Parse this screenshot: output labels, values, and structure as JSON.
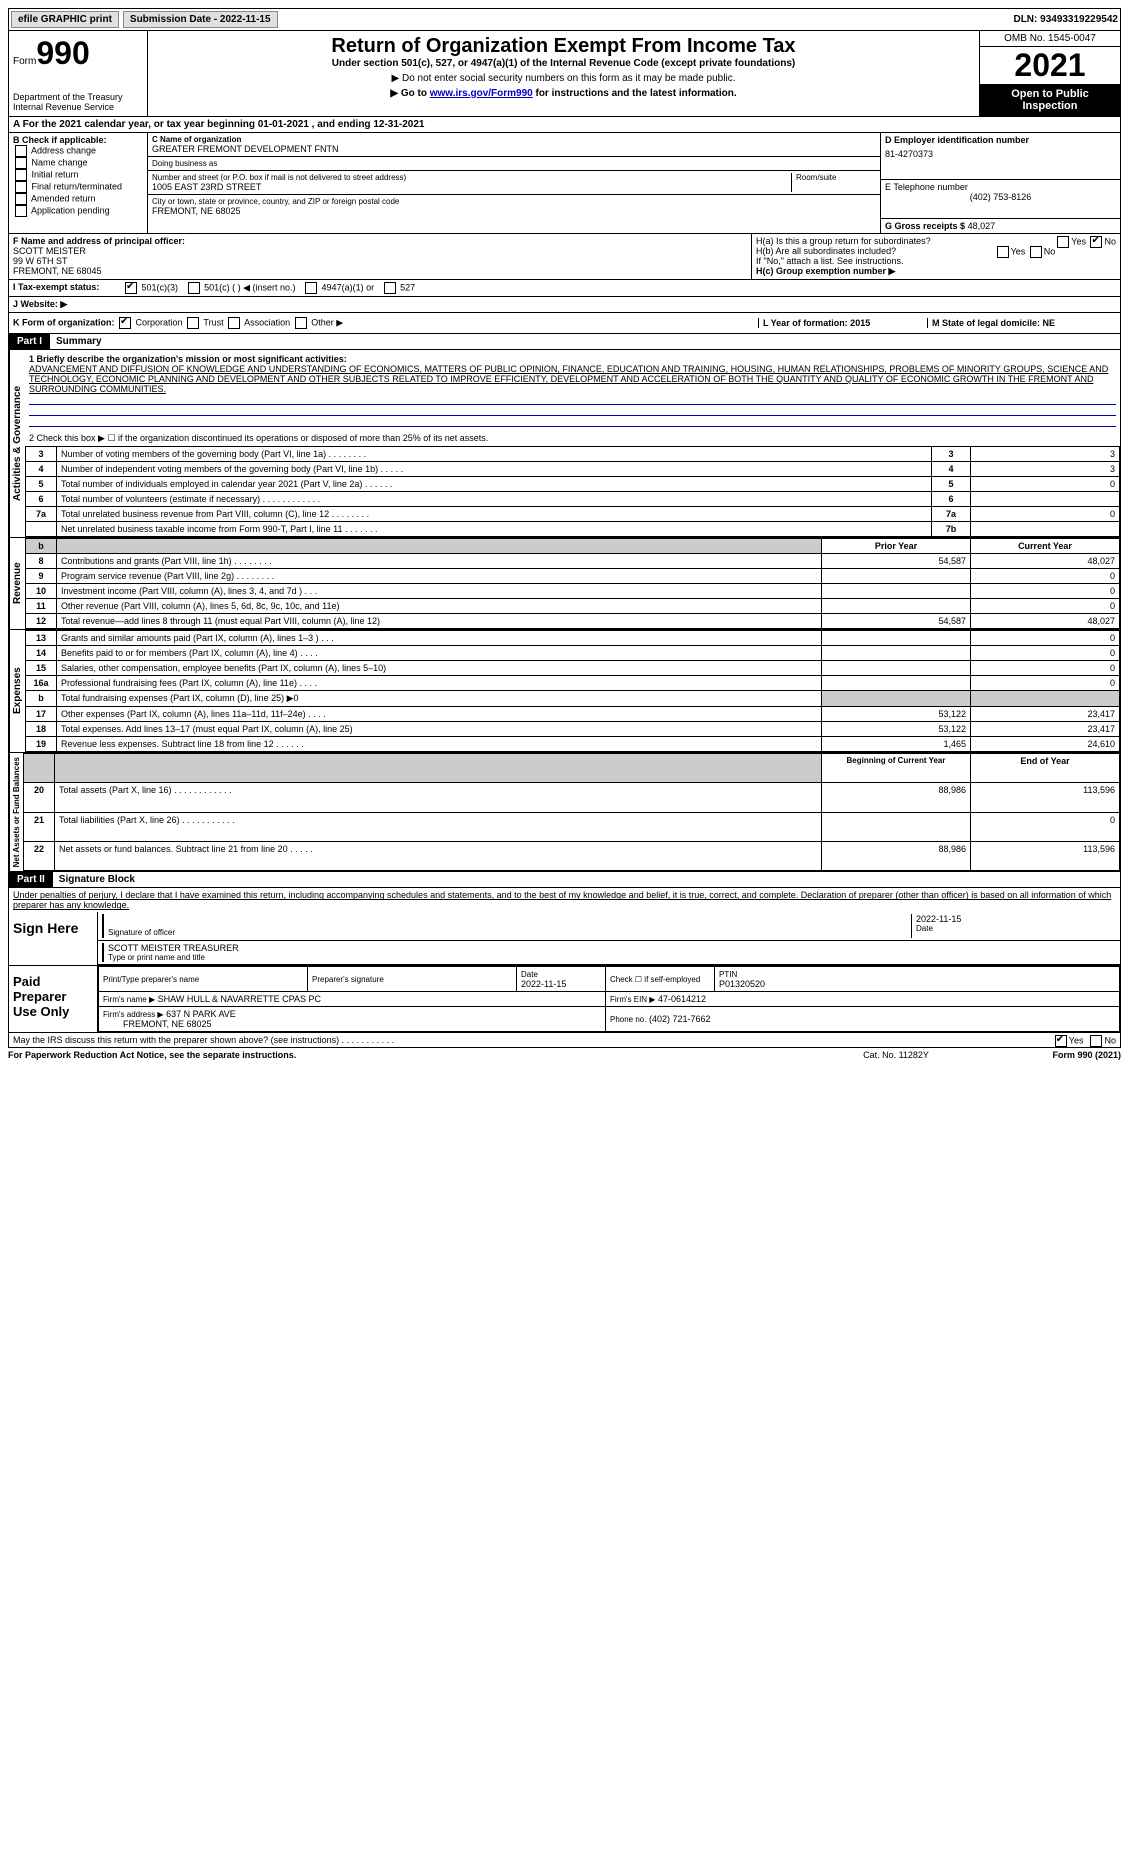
{
  "topbar": {
    "efile": "efile GRAPHIC print",
    "submission_label": "Submission Date - 2022-11-15",
    "dln": "DLN: 93493319229542"
  },
  "header": {
    "form_word": "Form",
    "form_num": "990",
    "dept": "Department of the Treasury",
    "irs": "Internal Revenue Service",
    "title": "Return of Organization Exempt From Income Tax",
    "sub1": "Under section 501(c), 527, or 4947(a)(1) of the Internal Revenue Code (except private foundations)",
    "sub2": "▶ Do not enter social security numbers on this form as it may be made public.",
    "sub3_pre": "▶ Go to ",
    "sub3_link": "www.irs.gov/Form990",
    "sub3_post": " for instructions and the latest information.",
    "omb": "OMB No. 1545-0047",
    "year": "2021",
    "open": "Open to Public Inspection"
  },
  "rowA": "A For the 2021 calendar year, or tax year beginning 01-01-2021     , and ending 12-31-2021",
  "B": {
    "label": "B Check if applicable:",
    "items": [
      "Address change",
      "Name change",
      "Initial return",
      "Final return/terminated",
      "Amended return",
      "Application pending"
    ]
  },
  "C": {
    "name_label": "C Name of organization",
    "name": "GREATER FREMONT DEVELOPMENT FNTN",
    "dba_label": "Doing business as",
    "dba": "",
    "street_label": "Number and street (or P.O. box if mail is not delivered to street address)",
    "street": "1005 EAST 23RD STREET",
    "room_label": "Room/suite",
    "city_label": "City or town, state or province, country, and ZIP or foreign postal code",
    "city": "FREMONT, NE  68025"
  },
  "D": {
    "label": "D Employer identification number",
    "value": "81-4270373"
  },
  "E": {
    "label": "E Telephone number",
    "value": "(402) 753-8126"
  },
  "G": {
    "label": "G Gross receipts $",
    "value": "48,027"
  },
  "F": {
    "label": "F  Name and address of principal officer:",
    "name": "SCOTT MEISTER",
    "addr1": "99 W 6TH ST",
    "addr2": "FREMONT, NE  68045"
  },
  "H": {
    "a": "H(a)  Is this a group return for subordinates?",
    "b": "H(b)  Are all subordinates included?",
    "note": "If \"No,\" attach a list. See instructions.",
    "c": "H(c)  Group exemption number ▶",
    "yes": "Yes",
    "no": "No"
  },
  "I": {
    "label": "I   Tax-exempt status:",
    "opts": [
      "501(c)(3)",
      "501(c) (  ) ◀ (insert no.)",
      "4947(a)(1) or",
      "527"
    ]
  },
  "J": {
    "label": "J   Website: ▶",
    "value": ""
  },
  "K": {
    "label": "K Form of organization:",
    "opts": [
      "Corporation",
      "Trust",
      "Association",
      "Other ▶"
    ]
  },
  "L": {
    "label": "L Year of formation: 2015"
  },
  "M": {
    "label": "M State of legal domicile: NE"
  },
  "partI": {
    "hdr": "Part I",
    "title": "Summary"
  },
  "summary": {
    "l1_label": "1  Briefly describe the organization's mission or most significant activities:",
    "mission": "ADVANCEMENT AND DIFFUSION OF KNOWLEDGE AND UNDERSTANDING OF ECONOMICS, MATTERS OF PUBLIC OPINION, FINANCE, EDUCATION AND TRAINING, HOUSING, HUMAN RELATIONSHIPS, PROBLEMS OF MINORITY GROUPS, SCIENCE AND TECHNOLOGY, ECONOMIC PLANNING AND DEVELOPMENT AND OTHER SUBJECTS RELATED TO IMPROVE EFFICIENTY, DEVELOPMENT AND ACCELERATION OF BOTH THE QUANTITY AND QUALITY OF ECONOMIC GROWTH IN THE FREMONT AND SURROUNDING COMMUNITIES.",
    "l2": "2   Check this box ▶ ☐ if the organization discontinued its operations or disposed of more than 25% of its net assets.",
    "rows_ag": [
      {
        "n": "3",
        "d": "Number of voting members of the governing body (Part VI, line 1a)   .    .    .    .    .    .    .    .",
        "b": "3",
        "v": "3"
      },
      {
        "n": "4",
        "d": "Number of independent voting members of the governing body (Part VI, line 1b)    .    .    .    .    .",
        "b": "4",
        "v": "3"
      },
      {
        "n": "5",
        "d": "Total number of individuals employed in calendar year 2021 (Part V, line 2a)   .    .    .    .    .    .",
        "b": "5",
        "v": "0"
      },
      {
        "n": "6",
        "d": "Total number of volunteers (estimate if necessary)   .    .    .    .    .    .    .    .    .    .    .    .",
        "b": "6",
        "v": ""
      },
      {
        "n": "7a",
        "d": "Total unrelated business revenue from Part VIII, column (C), line 12    .    .    .    .    .    .    .    .",
        "b": "7a",
        "v": "0"
      },
      {
        "n": "",
        "d": "Net unrelated business taxable income from Form 990-T, Part I, line 11   .    .    .    .    .    .    .",
        "b": "7b",
        "v": ""
      }
    ],
    "col_hdr_prior": "Prior Year",
    "col_hdr_curr": "Current Year",
    "rows_rev": [
      {
        "n": "8",
        "d": "Contributions and grants (Part VIII, line 1h)   .    .    .    .    .    .    .    .",
        "p": "54,587",
        "c": "48,027"
      },
      {
        "n": "9",
        "d": "Program service revenue (Part VIII, line 2g)    .    .    .    .    .    .    .    .",
        "p": "",
        "c": "0"
      },
      {
        "n": "10",
        "d": "Investment income (Part VIII, column (A), lines 3, 4, and 7d )    .    .    .",
        "p": "",
        "c": "0"
      },
      {
        "n": "11",
        "d": "Other revenue (Part VIII, column (A), lines 5, 6d, 8c, 9c, 10c, and 11e)",
        "p": "",
        "c": "0"
      },
      {
        "n": "12",
        "d": "Total revenue—add lines 8 through 11 (must equal Part VIII, column (A), line 12)",
        "p": "54,587",
        "c": "48,027"
      }
    ],
    "rows_exp": [
      {
        "n": "13",
        "d": "Grants and similar amounts paid (Part IX, column (A), lines 1–3 )   .    .    .",
        "p": "",
        "c": "0"
      },
      {
        "n": "14",
        "d": "Benefits paid to or for members (Part IX, column (A), line 4)   .    .    .    .",
        "p": "",
        "c": "0"
      },
      {
        "n": "15",
        "d": "Salaries, other compensation, employee benefits (Part IX, column (A), lines 5–10)",
        "p": "",
        "c": "0"
      },
      {
        "n": "16a",
        "d": "Professional fundraising fees (Part IX, column (A), line 11e)    .    .    .    .",
        "p": "",
        "c": "0"
      },
      {
        "n": "b",
        "d": "Total fundraising expenses (Part IX, column (D), line 25) ▶0",
        "p": "shade",
        "c": "shade"
      },
      {
        "n": "17",
        "d": "Other expenses (Part IX, column (A), lines 11a–11d, 11f–24e)   .    .    .    .",
        "p": "53,122",
        "c": "23,417"
      },
      {
        "n": "18",
        "d": "Total expenses. Add lines 13–17 (must equal Part IX, column (A), line 25)",
        "p": "53,122",
        "c": "23,417"
      },
      {
        "n": "19",
        "d": "Revenue less expenses. Subtract line 18 from line 12   .    .    .    .    .    .",
        "p": "1,465",
        "c": "24,610"
      }
    ],
    "col_hdr_beg": "Beginning of Current Year",
    "col_hdr_end": "End of Year",
    "rows_na": [
      {
        "n": "20",
        "d": "Total assets (Part X, line 16)   .    .    .    .    .    .    .    .    .    .    .    .",
        "p": "88,986",
        "c": "113,596"
      },
      {
        "n": "21",
        "d": "Total liabilities (Part X, line 26)    .    .    .    .    .    .    .    .    .    .    .",
        "p": "",
        "c": "0"
      },
      {
        "n": "22",
        "d": "Net assets or fund balances. Subtract line 21 from line 20    .    .    .    .    .",
        "p": "88,986",
        "c": "113,596"
      }
    ],
    "vtabs": {
      "ag": "Activities & Governance",
      "rev": "Revenue",
      "exp": "Expenses",
      "na": "Net Assets or Fund Balances"
    }
  },
  "partII": {
    "hdr": "Part II",
    "title": "Signature Block"
  },
  "sig": {
    "jurat": "Under penalties of perjury, I declare that I have examined this return, including accompanying schedules and statements, and to the best of my knowledge and belief, it is true, correct, and complete. Declaration of preparer (other than officer) is based on all information of which preparer has any knowledge.",
    "sign_here": "Sign Here",
    "sig_officer": "Signature of officer",
    "date": "Date",
    "date_val": "2022-11-15",
    "name_title": "SCOTT MEISTER  TREASURER",
    "name_title_label": "Type or print name and title",
    "paid": "Paid Preparer Use Only",
    "prep_name_label": "Print/Type preparer's name",
    "prep_sig_label": "Preparer's signature",
    "prep_date": "2022-11-15",
    "check_self": "Check ☐ if self-employed",
    "ptin_label": "PTIN",
    "ptin": "P01320520",
    "firm_name_label": "Firm's name    ▶",
    "firm_name": "SHAW HULL & NAVARRETTE CPAS PC",
    "firm_ein_label": "Firm's EIN ▶",
    "firm_ein": "47-0614212",
    "firm_addr_label": "Firm's address ▶",
    "firm_addr1": "637 N PARK AVE",
    "firm_addr2": "FREMONT, NE  68025",
    "phone_label": "Phone no.",
    "phone": "(402) 721-7662",
    "discuss": "May the IRS discuss this return with the preparer shown above? (see instructions)    .    .    .    .    .    .    .    .    .    .    .",
    "yes": "Yes",
    "no": "No"
  },
  "footer": {
    "left": "For Paperwork Reduction Act Notice, see the separate instructions.",
    "mid": "Cat. No. 11282Y",
    "right": "Form 990 (2021)"
  }
}
